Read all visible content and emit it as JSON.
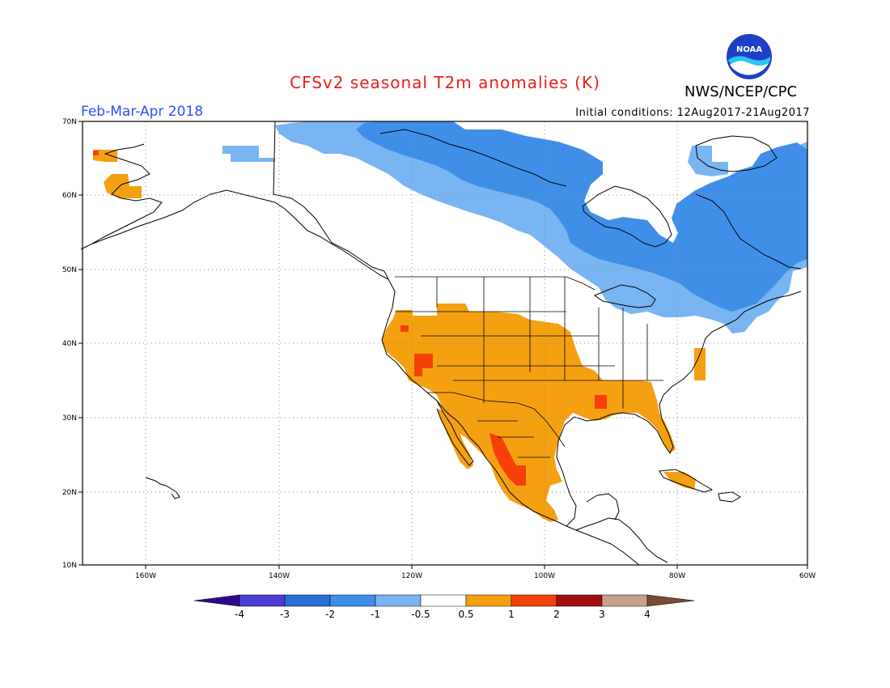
{
  "header": {
    "title": "CFSv2 seasonal T2m anomalies (K)",
    "agency": "NWS/NCEP/CPC",
    "logo_text": "NOAA",
    "period": "Feb-Mar-Apr 2018",
    "initial_conditions": "Initial conditions: 12Aug2017-21Aug2017"
  },
  "map": {
    "lon_range": [
      -172,
      -60
    ],
    "lat_range": [
      10,
      70
    ],
    "lon_ticks": [
      "160W",
      "140W",
      "120W",
      "100W",
      "80W",
      "60W"
    ],
    "lat_ticks": [
      "10N",
      "20N",
      "30N",
      "40N",
      "50N",
      "60N",
      "70N"
    ],
    "grid": "dotted"
  },
  "colorbar": {
    "labels": [
      "-4",
      "-3",
      "-2",
      "-1",
      "-0.5",
      "0.5",
      "1",
      "2",
      "3",
      "4"
    ],
    "colors": [
      "#2d0a8c",
      "#4b3dd4",
      "#2a6fd6",
      "#3f8fe8",
      "#79b5f2",
      "#ffffff",
      "#f5a010",
      "#f5400a",
      "#a30f0f",
      "#c8a08a",
      "#7a4a32"
    ]
  },
  "colors": {
    "cold_light": "#79b5f2",
    "cold": "#3f8fe8",
    "warm": "#f5a010",
    "hot": "#f5400a"
  }
}
